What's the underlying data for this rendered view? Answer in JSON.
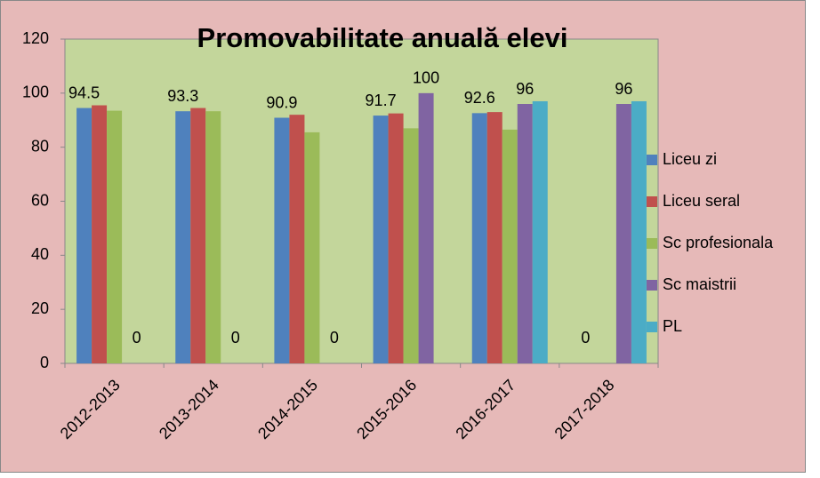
{
  "chart_data": {
    "type": "bar",
    "title": "Promovabilitate anuală elevi",
    "categories": [
      "2012-2013",
      "2013-2014",
      "2014-2015",
      "2015-2016",
      "2016-2017",
      "2017-2018"
    ],
    "series": [
      {
        "name": "Liceu zi",
        "color": "#4f81bd",
        "values": [
          94.5,
          93.3,
          90.9,
          91.7,
          92.6,
          0
        ],
        "show_labels": true
      },
      {
        "name": "Liceu seral",
        "color": "#c0504d",
        "values": [
          95.5,
          94.5,
          92,
          92.5,
          93,
          null
        ],
        "show_labels": false
      },
      {
        "name": "Sc profesionala",
        "color": "#9bbb59",
        "values": [
          93.5,
          93.3,
          85.5,
          87,
          86.5,
          null
        ],
        "show_labels": false
      },
      {
        "name": "Sc maistrii",
        "color": "#8064a2",
        "values": [
          0,
          0,
          0,
          100,
          96,
          96
        ],
        "show_labels": true
      },
      {
        "name": "PL",
        "color": "#4bacc6",
        "values": [
          null,
          null,
          null,
          null,
          97,
          97
        ],
        "show_labels": false
      }
    ],
    "ylim": [
      0,
      120
    ],
    "yticks": [
      0,
      20,
      40,
      60,
      80,
      100,
      120
    ],
    "grid": false,
    "legend": "right"
  }
}
